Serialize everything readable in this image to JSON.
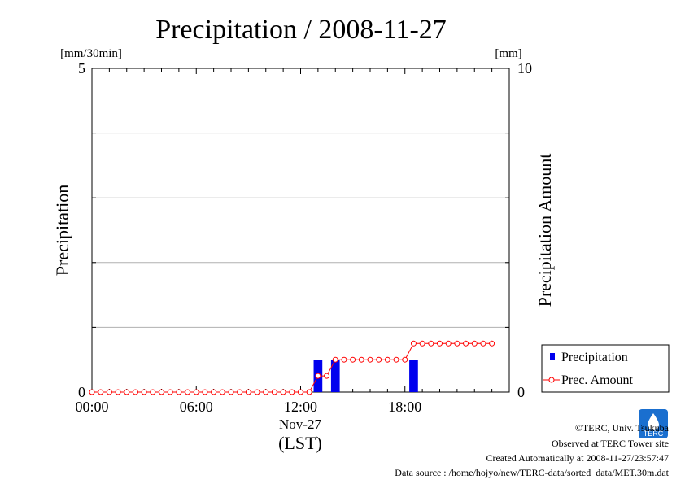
{
  "chart_data": {
    "type": "bar+line",
    "title": "Precipitation / 2008-11-27",
    "left_unit": "[mm/30min]",
    "right_unit": "[mm]",
    "ylabel_left": "Precipitation",
    "ylabel_right": "Precipitation Amount",
    "ylim_left": [
      0,
      5
    ],
    "ylim_right": [
      0,
      10
    ],
    "y_ticks_left": [
      "0",
      "5"
    ],
    "y_ticks_right": [
      "0",
      "10"
    ],
    "x_ticks": [
      "00:00",
      "06:00",
      "12:00",
      "18:00"
    ],
    "x_date": "Nov-27",
    "x_unit": "(LST)",
    "grid": true,
    "legend_position": "bottom-right outside",
    "series": [
      {
        "name": "Precipitation",
        "type": "bar",
        "color": "#0000ee",
        "axis": "left",
        "x": [
          "13:00",
          "14:00",
          "18:30"
        ],
        "values": [
          0.5,
          0.5,
          0.5
        ]
      },
      {
        "name": "Prec. Amount",
        "type": "line",
        "color": "#ff0000",
        "axis": "right",
        "x": [
          "00:00",
          "00:30",
          "01:00",
          "01:30",
          "02:00",
          "02:30",
          "03:00",
          "03:30",
          "04:00",
          "04:30",
          "05:00",
          "05:30",
          "06:00",
          "06:30",
          "07:00",
          "07:30",
          "08:00",
          "08:30",
          "09:00",
          "09:30",
          "10:00",
          "10:30",
          "11:00",
          "11:30",
          "12:00",
          "12:30",
          "13:00",
          "13:30",
          "14:00",
          "14:30",
          "15:00",
          "15:30",
          "16:00",
          "16:30",
          "17:00",
          "17:30",
          "18:00",
          "18:30",
          "19:00",
          "19:30",
          "20:00",
          "20:30",
          "21:00",
          "21:30",
          "22:00",
          "22:30",
          "23:00"
        ],
        "values": [
          0,
          0,
          0,
          0,
          0,
          0,
          0,
          0,
          0,
          0,
          0,
          0,
          0,
          0,
          0,
          0,
          0,
          0,
          0,
          0,
          0,
          0,
          0,
          0,
          0,
          0,
          0.5,
          0.5,
          1.0,
          1.0,
          1.0,
          1.0,
          1.0,
          1.0,
          1.0,
          1.0,
          1.0,
          1.5,
          1.5,
          1.5,
          1.5,
          1.5,
          1.5,
          1.5,
          1.5,
          1.5,
          1.5
        ]
      }
    ]
  },
  "footer": {
    "copyright": "©TERC, Univ. Tsukuba",
    "observed": "Observed at TERC Tower site",
    "created": "Created Automatically at 2008-11-27/23:57:47",
    "source": "Data source : /home/hojyo/new/TERC-data/sorted_data/MET.30m.dat",
    "logo_text": "TERC"
  }
}
